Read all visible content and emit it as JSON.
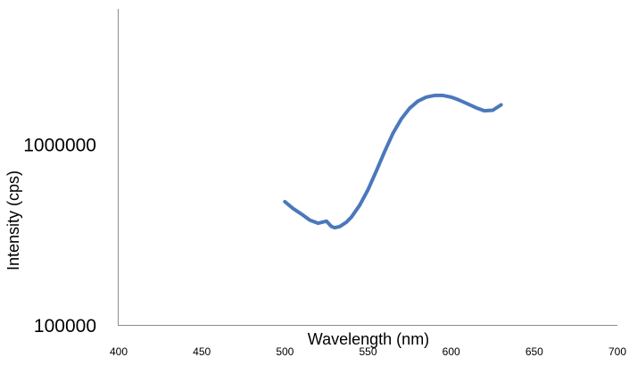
{
  "chart_data": {
    "type": "line",
    "title": "",
    "xlabel": "Wavelength (nm)",
    "ylabel": "Intensity (cps)",
    "xlim": [
      400,
      700
    ],
    "ylim": [
      100000,
      10000000
    ],
    "yscale": "log",
    "grid": false,
    "legend": "none",
    "x_ticks": [
      "400",
      "450",
      "500",
      "550",
      "600",
      "650",
      "700"
    ],
    "y_ticks": [
      "100000",
      "1000000"
    ],
    "series": [
      {
        "color": "#4a78bb",
        "x": [
          500,
          505,
          510,
          515,
          520,
          525,
          528,
          530,
          533,
          537,
          540,
          545,
          550,
          555,
          560,
          565,
          570,
          575,
          580,
          585,
          590,
          595,
          600,
          605,
          610,
          615,
          620,
          625,
          630
        ],
        "y": [
          480000,
          440000,
          410000,
          380000,
          365000,
          375000,
          350000,
          345000,
          350000,
          370000,
          395000,
          460000,
          560000,
          710000,
          910000,
          1150000,
          1380000,
          1580000,
          1730000,
          1820000,
          1860000,
          1860000,
          1820000,
          1750000,
          1670000,
          1590000,
          1530000,
          1540000,
          1650000
        ]
      }
    ]
  }
}
